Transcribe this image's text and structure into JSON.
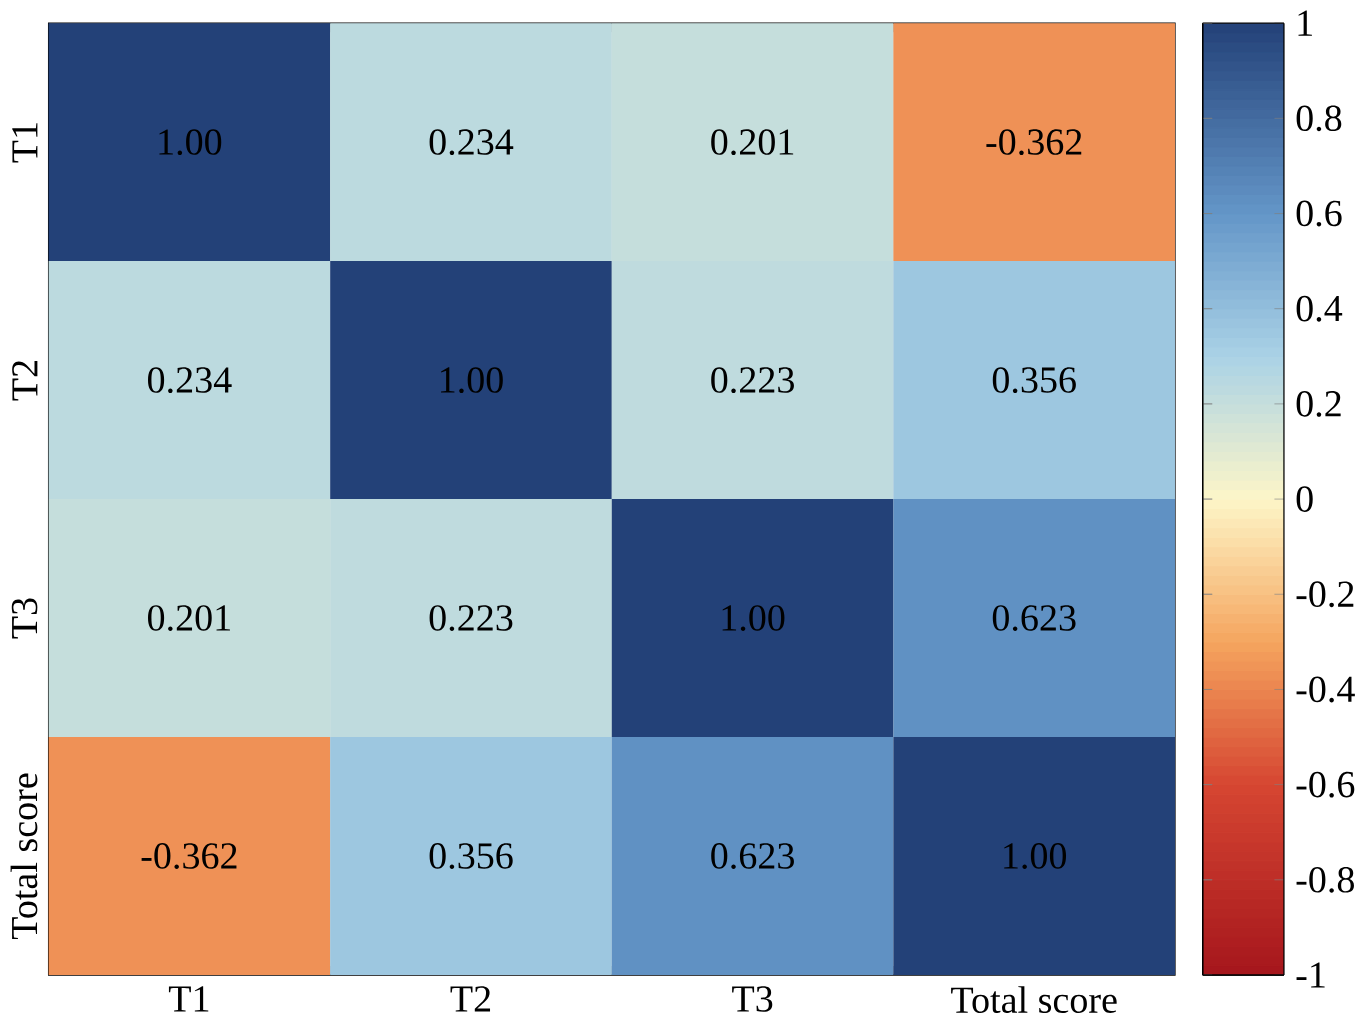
{
  "chart_data": {
    "type": "heatmap",
    "categories": [
      "T1",
      "T2",
      "T3",
      "Total score"
    ],
    "y_categories": [
      "T1",
      "T2",
      "T3",
      "Total score"
    ],
    "cells": [
      [
        1,
        0.234,
        0.201,
        -0.362
      ],
      [
        0.234,
        1,
        0.223,
        0.356
      ],
      [
        0.201,
        0.223,
        1,
        0.623
      ],
      [
        -0.362,
        0.356,
        0.623,
        1
      ]
    ],
    "cell_labels": [
      [
        "1.00",
        "0.234",
        "0.201",
        "-0.362"
      ],
      [
        "0.234",
        "1.00",
        "0.223",
        "0.356"
      ],
      [
        "0.201",
        "0.223",
        "1.00",
        "0.623"
      ],
      [
        "-0.362",
        "0.356",
        "0.623",
        "1.00"
      ]
    ],
    "clim": [
      -1,
      1
    ],
    "cticks": [
      -1,
      -0.8,
      -0.6,
      -0.4,
      -0.2,
      0,
      0.2,
      0.4,
      0.6,
      0.8,
      1
    ],
    "grid": true
  }
}
